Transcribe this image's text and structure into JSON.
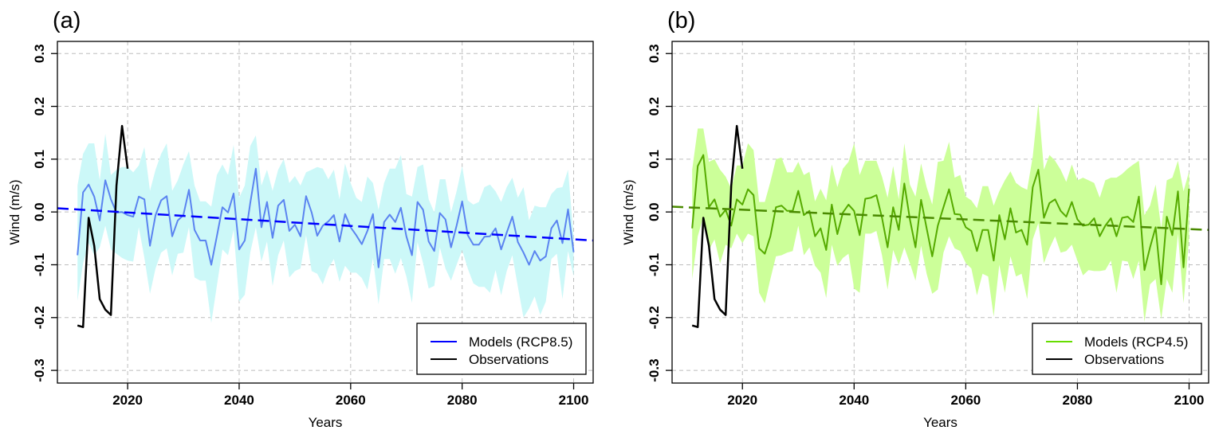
{
  "figure": {
    "panels": [
      "a",
      "b"
    ]
  },
  "chart_data": [
    {
      "type": "line",
      "panel_label": "(a)",
      "title": "",
      "xlabel": "Years",
      "ylabel": "Wind (m/s)",
      "xlim": [
        2007.4,
        2103.5
      ],
      "ylim": [
        -0.324,
        0.323
      ],
      "xticks": [
        2020,
        2040,
        2060,
        2080,
        2100
      ],
      "xtick_labels": [
        "2020",
        "2040",
        "2060",
        "2080",
        "2100"
      ],
      "yticks": [
        -0.3,
        -0.2,
        -0.1,
        0.0,
        0.1,
        0.2,
        0.3
      ],
      "ytick_labels": [
        "-0.3",
        "-0.2",
        "-0.1",
        "0.0",
        "0.1",
        "0.2",
        "0.3"
      ],
      "grid": true,
      "legend": {
        "position": "bottom-right",
        "entries": [
          {
            "label": "Models (RCP8.5)",
            "color": "#0000ff"
          },
          {
            "label": "Observations",
            "color": "#000000"
          }
        ]
      },
      "colors": {
        "band": "#ccf8f8",
        "model": "#5b84f0",
        "trend": "#0000ff",
        "obs": "#000000"
      },
      "x_start": 2011,
      "series": [
        {
          "name": "Models (RCP8.5) ensemble mean",
          "values": [
            -0.082,
            0.037,
            0.052,
            0.029,
            -0.016,
            0.06,
            0.024,
            -0.001,
            0.0,
            -0.006,
            -0.009,
            0.029,
            0.024,
            -0.064,
            -0.006,
            0.022,
            0.03,
            -0.046,
            -0.016,
            -0.006,
            0.042,
            -0.034,
            -0.054,
            -0.054,
            -0.1,
            -0.046,
            0.009,
            -0.001,
            0.035,
            -0.071,
            -0.054,
            0.017,
            0.082,
            -0.029,
            0.019,
            -0.049,
            0.012,
            0.023,
            -0.036,
            -0.024,
            -0.046,
            0.03,
            -0.001,
            -0.045,
            -0.026,
            -0.018,
            -0.006,
            -0.056,
            -0.004,
            -0.029,
            -0.044,
            -0.061,
            -0.036,
            -0.004,
            -0.105,
            -0.019,
            -0.005,
            -0.019,
            0.008,
            -0.046,
            -0.082,
            0.019,
            0.004,
            -0.056,
            -0.074,
            -0.002,
            -0.014,
            -0.067,
            -0.026,
            0.02,
            -0.044,
            -0.062,
            -0.062,
            -0.047,
            -0.046,
            -0.031,
            -0.071,
            -0.039,
            -0.009,
            -0.057,
            -0.077,
            -0.1,
            -0.074,
            -0.092,
            -0.084,
            -0.031,
            -0.016,
            -0.059,
            0.005,
            -0.076
          ]
        },
        {
          "name": "Model range upper",
          "values": [
            0.05,
            0.11,
            0.13,
            0.13,
            0.06,
            0.148,
            0.07,
            0.08,
            0.085,
            0.085,
            0.075,
            0.088,
            0.123,
            0.04,
            0.08,
            0.11,
            0.13,
            0.04,
            0.06,
            0.09,
            0.115,
            0.05,
            0.02,
            0.02,
            0.01,
            0.07,
            0.09,
            0.07,
            0.127,
            0.027,
            0.05,
            0.125,
            0.145,
            0.05,
            0.08,
            0.04,
            0.08,
            0.1,
            0.055,
            0.068,
            0.05,
            0.075,
            0.08,
            0.085,
            0.082,
            0.062,
            0.08,
            0.024,
            0.092,
            0.055,
            0.027,
            0.019,
            0.067,
            0.055,
            0.004,
            0.055,
            0.082,
            0.082,
            0.108,
            0.034,
            0.029,
            0.085,
            0.09,
            0.024,
            -0.001,
            0.062,
            0.062,
            -0.001,
            0.039,
            0.087,
            0.022,
            0.014,
            0.019,
            0.047,
            0.052,
            0.039,
            0.019,
            0.047,
            0.065,
            0.027,
            0.047,
            -0.016,
            0.012,
            0.009,
            0.009,
            0.034,
            0.045,
            0.047,
            0.08,
            -0.046
          ]
        },
        {
          "name": "Model range lower",
          "values": [
            -0.168,
            -0.097,
            -0.059,
            -0.082,
            -0.067,
            -0.026,
            -0.071,
            -0.079,
            -0.087,
            -0.092,
            -0.094,
            -0.029,
            -0.087,
            -0.155,
            -0.107,
            -0.077,
            -0.069,
            -0.12,
            -0.079,
            -0.077,
            -0.029,
            -0.124,
            -0.13,
            -0.13,
            -0.21,
            -0.14,
            -0.071,
            -0.082,
            -0.034,
            -0.17,
            -0.157,
            -0.077,
            -0.029,
            -0.094,
            -0.056,
            -0.14,
            -0.082,
            -0.054,
            -0.124,
            -0.112,
            -0.107,
            -0.044,
            -0.112,
            -0.117,
            -0.137,
            -0.107,
            -0.089,
            -0.132,
            -0.102,
            -0.115,
            -0.115,
            -0.125,
            -0.147,
            -0.087,
            -0.175,
            -0.089,
            -0.089,
            -0.117,
            -0.087,
            -0.122,
            -0.172,
            -0.057,
            -0.097,
            -0.145,
            -0.14,
            -0.067,
            -0.107,
            -0.13,
            -0.1,
            -0.072,
            -0.107,
            -0.135,
            -0.142,
            -0.142,
            -0.153,
            -0.11,
            -0.158,
            -0.112,
            -0.082,
            -0.142,
            -0.2,
            -0.183,
            -0.16,
            -0.195,
            -0.17,
            -0.089,
            -0.079,
            -0.165,
            -0.074,
            -0.122
          ]
        },
        {
          "name": "Observations",
          "x": [
            2011,
            2012,
            2013,
            2014,
            2015,
            2016,
            2017,
            2018,
            2019,
            2020
          ],
          "values": [
            -0.215,
            -0.218,
            -0.011,
            -0.064,
            -0.165,
            -0.185,
            -0.195,
            0.05,
            0.163,
            0.082
          ]
        },
        {
          "name": "Linear trend",
          "x": [
            2007.4,
            2103.5
          ],
          "values": [
            0.007,
            -0.054
          ]
        }
      ]
    },
    {
      "type": "line",
      "panel_label": "(b)",
      "title": "",
      "xlabel": "Years",
      "ylabel": "Wind (m/s)",
      "xlim": [
        2007.4,
        2103.5
      ],
      "ylim": [
        -0.324,
        0.323
      ],
      "xticks": [
        2020,
        2040,
        2060,
        2080,
        2100
      ],
      "xtick_labels": [
        "2020",
        "2040",
        "2060",
        "2080",
        "2100"
      ],
      "yticks": [
        -0.3,
        -0.2,
        -0.1,
        0.0,
        0.1,
        0.2,
        0.3
      ],
      "ytick_labels": [
        "-0.3",
        "-0.2",
        "-0.1",
        "0.0",
        "0.1",
        "0.2",
        "0.3"
      ],
      "grid": true,
      "legend": {
        "position": "bottom-right",
        "entries": [
          {
            "label": "Models (RCP4.5)",
            "color": "#66dd00"
          },
          {
            "label": "Observations",
            "color": "#000000"
          }
        ]
      },
      "colors": {
        "band": "#ccff99",
        "model": "#55aa00",
        "trend": "#4a8a00",
        "obs": "#000000"
      },
      "x_start": 2011,
      "series": [
        {
          "name": "Models (RCP4.5) ensemble mean",
          "values": [
            -0.031,
            0.087,
            0.108,
            0.009,
            0.024,
            -0.009,
            0.004,
            -0.026,
            0.024,
            0.014,
            0.043,
            0.032,
            -0.069,
            -0.079,
            -0.046,
            0.009,
            0.012,
            0.002,
            0.002,
            0.04,
            -0.006,
            0.002,
            -0.046,
            -0.031,
            -0.072,
            0.014,
            -0.042,
            -0.001,
            0.014,
            0.002,
            -0.044,
            0.025,
            0.027,
            0.032,
            -0.011,
            -0.067,
            0.009,
            -0.034,
            0.054,
            -0.014,
            -0.067,
            0.023,
            -0.031,
            -0.084,
            -0.026,
            0.009,
            0.043,
            -0.004,
            -0.005,
            -0.029,
            -0.036,
            -0.074,
            -0.034,
            -0.034,
            -0.092,
            -0.006,
            -0.052,
            0.007,
            -0.039,
            -0.034,
            -0.062,
            0.047,
            0.08,
            -0.011,
            0.017,
            0.024,
            0.002,
            -0.009,
            0.019,
            -0.014,
            -0.026,
            -0.024,
            -0.012,
            -0.046,
            -0.026,
            -0.012,
            -0.046,
            -0.011,
            -0.009,
            -0.019,
            0.029,
            -0.11,
            -0.067,
            -0.029,
            -0.137,
            -0.009,
            -0.044,
            0.039,
            -0.105,
            0.044
          ]
        },
        {
          "name": "Model range upper",
          "values": [
            0.08,
            0.158,
            0.158,
            0.095,
            0.1,
            0.08,
            0.067,
            0.044,
            0.088,
            0.088,
            0.13,
            0.117,
            0.019,
            0.019,
            0.057,
            0.1,
            0.103,
            0.075,
            0.075,
            0.095,
            0.07,
            0.076,
            0.02,
            0.044,
            0.022,
            0.09,
            0.047,
            0.082,
            0.095,
            0.13,
            0.07,
            0.097,
            0.097,
            0.097,
            0.067,
            0.027,
            0.087,
            0.024,
            0.13,
            0.052,
            0.029,
            0.092,
            0.047,
            0.014,
            0.095,
            0.097,
            0.133,
            0.065,
            0.07,
            0.029,
            0.022,
            0.007,
            0.049,
            0.049,
            0.012,
            0.039,
            0.06,
            0.077,
            0.055,
            0.047,
            0.042,
            0.105,
            0.206,
            0.08,
            0.108,
            0.097,
            0.08,
            0.057,
            0.09,
            0.06,
            0.065,
            0.06,
            0.055,
            0.027,
            0.06,
            0.065,
            0.065,
            0.072,
            0.082,
            0.09,
            0.097,
            -0.006,
            0.012,
            0.052,
            -0.031,
            0.06,
            0.065,
            0.097,
            0.039,
            0.077
          ]
        },
        {
          "name": "Model range lower",
          "values": [
            -0.127,
            -0.046,
            -0.009,
            -0.072,
            -0.052,
            -0.097,
            -0.062,
            -0.069,
            -0.041,
            -0.059,
            -0.041,
            -0.046,
            -0.153,
            -0.173,
            -0.127,
            -0.084,
            -0.082,
            -0.077,
            -0.074,
            -0.026,
            -0.082,
            -0.067,
            -0.102,
            -0.115,
            -0.163,
            -0.062,
            -0.102,
            -0.087,
            -0.079,
            -0.145,
            -0.153,
            -0.041,
            -0.041,
            -0.036,
            -0.082,
            -0.147,
            -0.072,
            -0.1,
            -0.067,
            -0.097,
            -0.13,
            -0.064,
            -0.117,
            -0.155,
            -0.147,
            -0.077,
            -0.046,
            -0.069,
            -0.074,
            -0.097,
            -0.107,
            -0.158,
            -0.117,
            -0.122,
            -0.198,
            -0.1,
            -0.153,
            -0.084,
            -0.122,
            -0.117,
            -0.165,
            -0.052,
            -0.021,
            -0.097,
            -0.069,
            -0.046,
            -0.077,
            -0.074,
            -0.062,
            -0.092,
            -0.12,
            -0.11,
            -0.112,
            -0.112,
            -0.11,
            -0.092,
            -0.153,
            -0.092,
            -0.094,
            -0.127,
            -0.092,
            -0.208,
            -0.137,
            -0.127,
            -0.203,
            -0.127,
            -0.153,
            -0.041,
            -0.173,
            -0.05
          ]
        },
        {
          "name": "Observations",
          "x": [
            2011,
            2012,
            2013,
            2014,
            2015,
            2016,
            2017,
            2018,
            2019,
            2020
          ],
          "values": [
            -0.215,
            -0.218,
            -0.011,
            -0.064,
            -0.165,
            -0.185,
            -0.195,
            0.05,
            0.163,
            0.082
          ]
        },
        {
          "name": "Linear trend",
          "x": [
            2007.4,
            2103.5
          ],
          "values": [
            0.01,
            -0.034
          ]
        }
      ]
    }
  ]
}
